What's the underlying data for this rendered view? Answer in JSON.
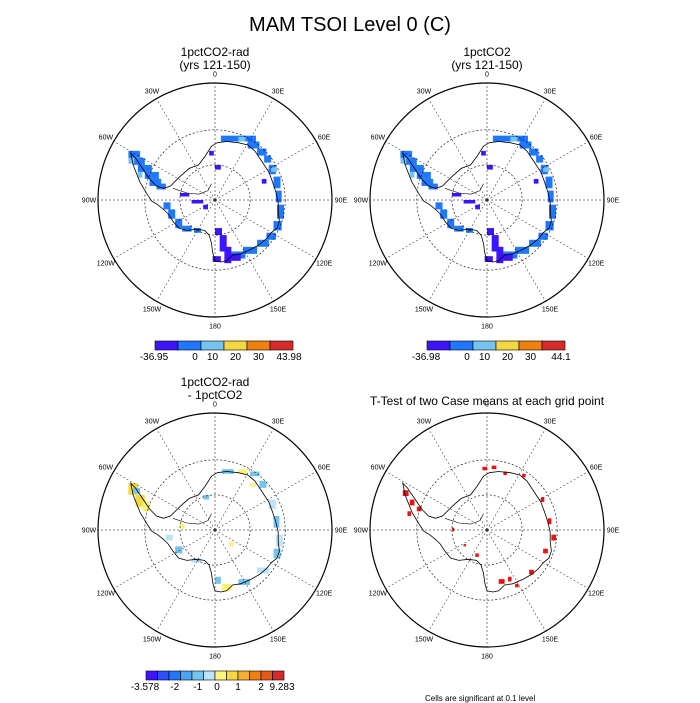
{
  "title": "MAM TSOI Level 0 (C)",
  "panels": [
    {
      "title1": "1pctCO2-rad",
      "title2": "(yrs 121-150)"
    },
    {
      "title1": "1pctCO2",
      "title2": "(yrs 121-150)"
    },
    {
      "title1": "1pctCO2-rad",
      "title2": "- 1pctCO2"
    },
    {
      "title1": "T-Test of two Case means at each grid point",
      "title2": ""
    }
  ],
  "lon_labels": [
    "0",
    "30E",
    "60E",
    "90E",
    "120E",
    "150E",
    "180",
    "150W",
    "120W",
    "90W",
    "60W",
    "30W"
  ],
  "colorbars": [
    {
      "labels": [
        "-36.95",
        "0",
        "10",
        "20",
        "30",
        "43.98"
      ],
      "colors": [
        "#3f14ff",
        "#1f78ff",
        "#74c4ef",
        "#f5d742",
        "#f08012",
        "#d62b2b"
      ]
    },
    {
      "labels": [
        "-36.98",
        "0",
        "10",
        "20",
        "30",
        "44.1"
      ],
      "colors": [
        "#3f14ff",
        "#1f78ff",
        "#74c4ef",
        "#f5d742",
        "#f08012",
        "#d62b2b"
      ]
    },
    {
      "labels": [
        "-3.578",
        "-2",
        "-1",
        "0",
        "1",
        "2",
        "9.283"
      ],
      "colors": [
        "#3f14ff",
        "#2a50ff",
        "#1f78ff",
        "#4ea3f5",
        "#74c4ef",
        "#bde3f7",
        "#fff27a",
        "#f5d742",
        "#f5b030",
        "#f08012",
        "#e35a1a",
        "#d62b2b"
      ]
    }
  ],
  "footnote": "Cells are significant at 0.1 level",
  "chart_data": [
    {
      "type": "heatmap",
      "title": "1pctCO2-rad (yrs 121-150)",
      "projection": "south polar stereographic",
      "range": [
        -36.95,
        43.98
      ],
      "levels": [
        0,
        10,
        20,
        30
      ]
    },
    {
      "type": "heatmap",
      "title": "1pctCO2 (yrs 121-150)",
      "projection": "south polar stereographic",
      "range": [
        -36.98,
        44.1
      ],
      "levels": [
        0,
        10,
        20,
        30
      ]
    },
    {
      "type": "heatmap",
      "title": "1pctCO2-rad - 1pctCO2",
      "projection": "south polar stereographic",
      "range": [
        -3.578,
        9.283
      ],
      "levels": [
        -2,
        -1,
        0,
        1,
        2
      ]
    },
    {
      "type": "heatmap",
      "title": "T-Test of two Case means at each grid point",
      "projection": "south polar stereographic",
      "note": "Cells are significant at 0.1 level"
    }
  ]
}
